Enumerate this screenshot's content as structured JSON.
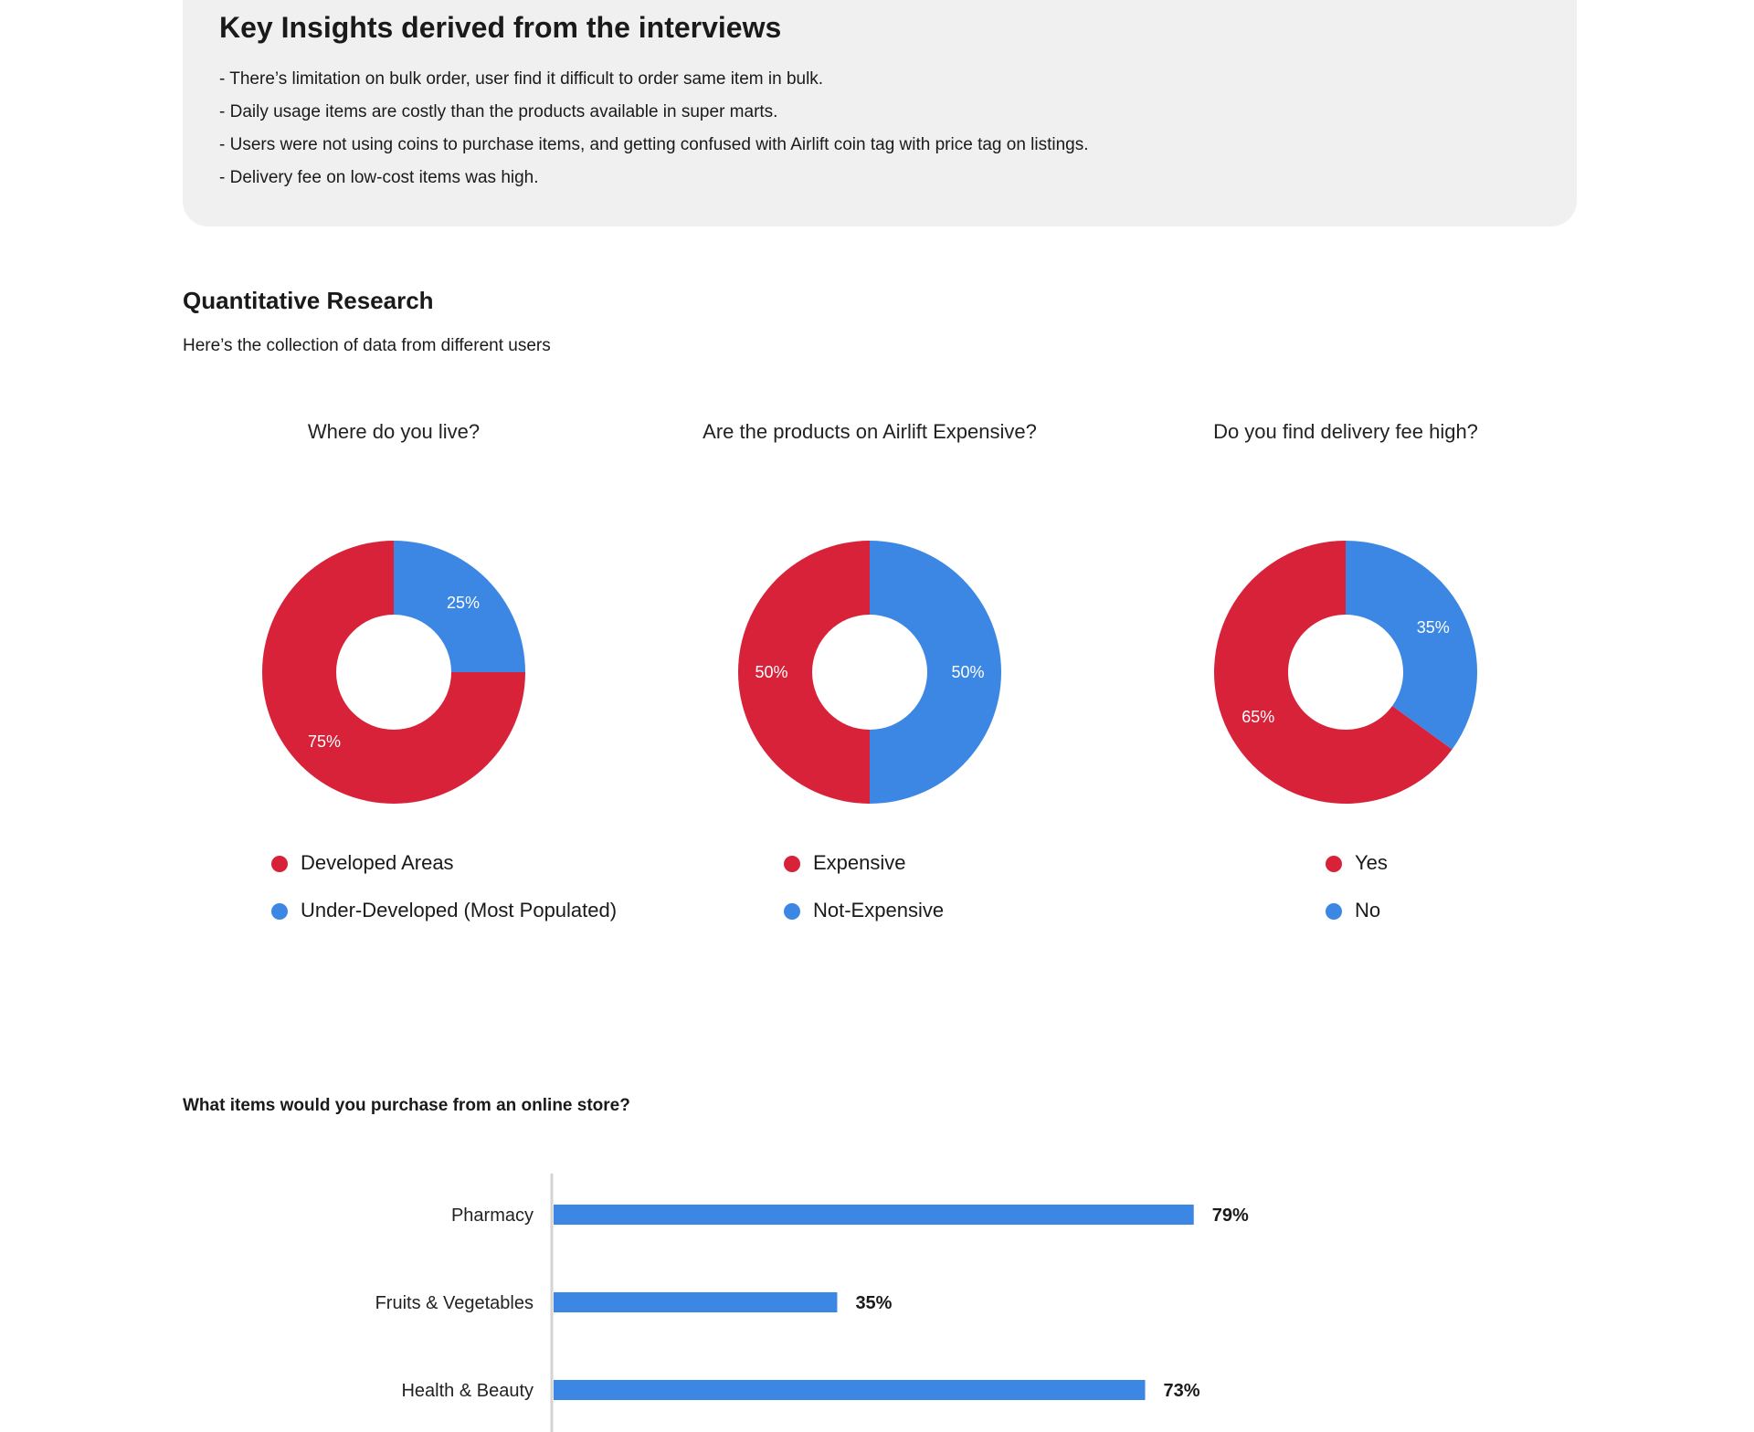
{
  "insights": {
    "title": "Key Insights derived from the interviews",
    "items": [
      "- There’s limitation on bulk order, user find it difficult to order same item in bulk.",
      "- Daily usage items are costly than the products available in super marts.",
      "- Users were not using coins to purchase items, and getting confused with Airlift coin tag with price tag on listings.",
      "- Delivery fee on low-cost items was high."
    ]
  },
  "research": {
    "title": "Quantitative Research",
    "subtitle": "Here’s the collection of data from different users"
  },
  "colors": {
    "red": "#d8223a",
    "blue": "#3c87e4"
  },
  "chart_data": [
    {
      "type": "pie",
      "title": "Where do you live?",
      "slices": [
        {
          "label": "Under-Developed (Most Populated)",
          "value": 25,
          "display": "25%",
          "color": "#3c87e4"
        },
        {
          "label": "Developed Areas",
          "value": 75,
          "display": "75%",
          "color": "#d8223a"
        }
      ],
      "legend": [
        "Developed Areas",
        "Under-Developed (Most Populated)"
      ],
      "legend_colors": [
        "#d8223a",
        "#3c87e4"
      ]
    },
    {
      "type": "pie",
      "title": "Are the products on Airlift Expensive?",
      "slices": [
        {
          "label": "Not-Expensive",
          "value": 50,
          "display": "50%",
          "color": "#3c87e4"
        },
        {
          "label": "Expensive",
          "value": 50,
          "display": "50%",
          "color": "#d8223a"
        }
      ],
      "legend": [
        "Expensive",
        "Not-Expensive"
      ],
      "legend_colors": [
        "#d8223a",
        "#3c87e4"
      ]
    },
    {
      "type": "pie",
      "title": "Do you find delivery fee high?",
      "slices": [
        {
          "label": "No",
          "value": 35,
          "display": "35%",
          "color": "#3c87e4"
        },
        {
          "label": "Yes",
          "value": 65,
          "display": "65%",
          "color": "#d8223a"
        }
      ],
      "legend": [
        "Yes",
        "No"
      ],
      "legend_colors": [
        "#d8223a",
        "#3c87e4"
      ]
    },
    {
      "type": "bar",
      "orientation": "horizontal",
      "title": "What items would you purchase from an online store?",
      "categories": [
        "Pharmacy",
        "Fruits & Vegetables",
        "Health & Beauty"
      ],
      "values": [
        79,
        35,
        73
      ],
      "labels": [
        "79%",
        "35%",
        "73%"
      ],
      "xlim": [
        0,
        100
      ],
      "color": "#3c87e4"
    }
  ]
}
